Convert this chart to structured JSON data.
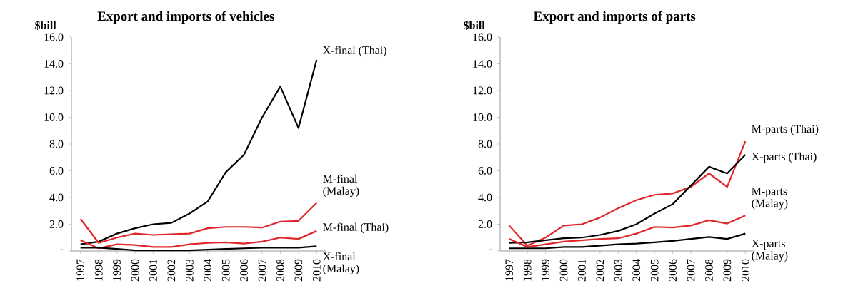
{
  "chart_data": [
    {
      "type": "line",
      "title": "Export and imports of vehicles",
      "ylabel": "$bill",
      "categories": [
        "1997",
        "1998",
        "1999",
        "2000",
        "2001",
        "2002",
        "2003",
        "2004",
        "2005",
        "2006",
        "2007",
        "2008",
        "2009",
        "2010"
      ],
      "ylim": [
        0,
        16
      ],
      "yticks": [
        {
          "value": 0,
          "label": "-"
        },
        {
          "value": 2,
          "label": "2.0"
        },
        {
          "value": 4,
          "label": "4.0"
        },
        {
          "value": 6,
          "label": "6.0"
        },
        {
          "value": 8,
          "label": "8.0"
        },
        {
          "value": 10,
          "label": "10.0"
        },
        {
          "value": 12,
          "label": "12.0"
        },
        {
          "value": 14,
          "label": "14.0"
        },
        {
          "value": 16,
          "label": "16.0"
        }
      ],
      "series": [
        {
          "name": "X-final (Thai)",
          "color": "#000000",
          "values": [
            0.5,
            0.7,
            1.3,
            1.7,
            2.0,
            2.1,
            2.8,
            3.7,
            5.9,
            7.2,
            10.0,
            12.3,
            9.2,
            14.3
          ]
        },
        {
          "name": "M-final (Malay)",
          "color": "#e0262a",
          "values": [
            2.4,
            0.6,
            1.0,
            1.3,
            1.2,
            1.25,
            1.3,
            1.7,
            1.8,
            1.8,
            1.75,
            2.2,
            2.25,
            3.6
          ]
        },
        {
          "name": "M-final (Thai)",
          "color": "#e0262a",
          "values": [
            0.8,
            0.2,
            0.5,
            0.45,
            0.3,
            0.3,
            0.5,
            0.6,
            0.65,
            0.55,
            0.7,
            1.0,
            0.9,
            1.5
          ]
        },
        {
          "name": "X-final (Malay)",
          "color": "#000000",
          "values": [
            0.25,
            0.25,
            0.15,
            0.05,
            0.05,
            0.05,
            0.05,
            0.1,
            0.15,
            0.2,
            0.25,
            0.25,
            0.25,
            0.35
          ]
        }
      ]
    },
    {
      "type": "line",
      "title": "Export and imports of parts",
      "ylabel": "$bill",
      "categories": [
        "1997",
        "1998",
        "1999",
        "2000",
        "2001",
        "2002",
        "2003",
        "2004",
        "2005",
        "2006",
        "2007",
        "2008",
        "2009",
        "2010"
      ],
      "ylim": [
        0,
        16
      ],
      "yticks": [
        {
          "value": 0,
          "label": "-"
        },
        {
          "value": 2,
          "label": "2.0"
        },
        {
          "value": 4,
          "label": "4.0"
        },
        {
          "value": 6,
          "label": "6.0"
        },
        {
          "value": 8,
          "label": "8.0"
        },
        {
          "value": 10,
          "label": "10.0"
        },
        {
          "value": 12,
          "label": "12.0"
        },
        {
          "value": 14,
          "label": "14.0"
        },
        {
          "value": 16,
          "label": "16.0"
        }
      ],
      "series": [
        {
          "name": "M-parts (Thai)",
          "color": "#e0262a",
          "values": [
            1.9,
            0.4,
            1.0,
            1.9,
            2.0,
            2.5,
            3.2,
            3.8,
            4.2,
            4.3,
            4.8,
            5.8,
            4.8,
            8.2
          ]
        },
        {
          "name": "X-parts (Thai)",
          "color": "#000000",
          "values": [
            0.6,
            0.65,
            0.8,
            0.95,
            1.0,
            1.2,
            1.5,
            2.0,
            2.8,
            3.5,
            4.9,
            6.3,
            5.8,
            7.2
          ]
        },
        {
          "name": "M-parts (Malay)",
          "color": "#e0262a",
          "values": [
            0.9,
            0.3,
            0.5,
            0.7,
            0.8,
            0.9,
            0.95,
            1.3,
            1.8,
            1.75,
            1.9,
            2.3,
            2.05,
            2.65
          ]
        },
        {
          "name": "X-parts (Malay)",
          "color": "#000000",
          "values": [
            0.2,
            0.2,
            0.2,
            0.3,
            0.3,
            0.4,
            0.5,
            0.55,
            0.65,
            0.75,
            0.9,
            1.05,
            0.9,
            1.3
          ]
        }
      ]
    }
  ]
}
